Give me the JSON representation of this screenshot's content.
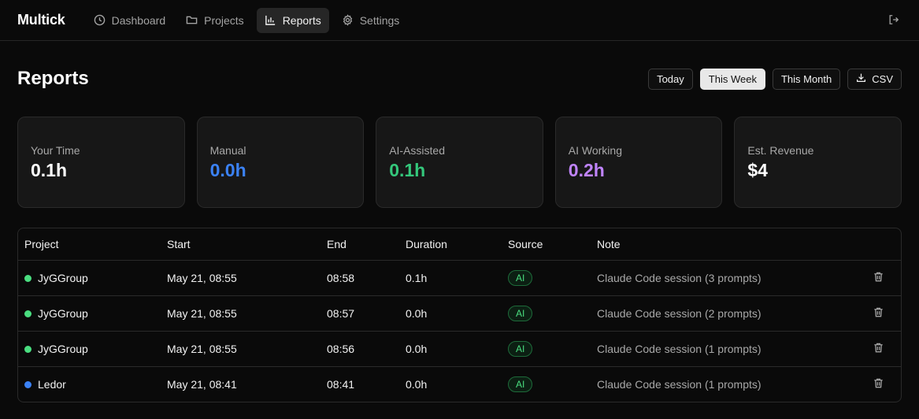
{
  "app": {
    "brand": "Multick"
  },
  "nav": {
    "items": [
      {
        "label": "Dashboard",
        "icon": "clock-icon",
        "active": false
      },
      {
        "label": "Projects",
        "icon": "folder-icon",
        "active": false
      },
      {
        "label": "Reports",
        "icon": "bar-chart-icon",
        "active": true
      },
      {
        "label": "Settings",
        "icon": "gear-icon",
        "active": false
      }
    ]
  },
  "page": {
    "title": "Reports"
  },
  "range": {
    "today": "Today",
    "this_week": "This Week",
    "this_month": "This Month",
    "csv": "CSV",
    "selected": "This Week"
  },
  "stats": [
    {
      "label": "Your Time",
      "value": "0.1h",
      "color": "#ffffff"
    },
    {
      "label": "Manual",
      "value": "0.0h",
      "color": "#3b82f6"
    },
    {
      "label": "AI-Assisted",
      "value": "0.1h",
      "color": "#34c77b"
    },
    {
      "label": "AI Working",
      "value": "0.2h",
      "color": "#c084fc"
    },
    {
      "label": "Est. Revenue",
      "value": "$4",
      "color": "#ffffff"
    }
  ],
  "table": {
    "columns": {
      "project": "Project",
      "start": "Start",
      "end": "End",
      "duration": "Duration",
      "source": "Source",
      "note": "Note"
    },
    "rows": [
      {
        "project": "JyGGroup",
        "color": "#4ade80",
        "start": "May 21, 08:55",
        "end": "08:58",
        "duration": "0.1h",
        "source": "AI",
        "note": "Claude Code session (3 prompts)"
      },
      {
        "project": "JyGGroup",
        "color": "#4ade80",
        "start": "May 21, 08:55",
        "end": "08:57",
        "duration": "0.0h",
        "source": "AI",
        "note": "Claude Code session (2 prompts)"
      },
      {
        "project": "JyGGroup",
        "color": "#4ade80",
        "start": "May 21, 08:55",
        "end": "08:56",
        "duration": "0.0h",
        "source": "AI",
        "note": "Claude Code session (1 prompts)"
      },
      {
        "project": "Ledor",
        "color": "#3b82f6",
        "start": "May 21, 08:41",
        "end": "08:41",
        "duration": "0.0h",
        "source": "AI",
        "note": "Claude Code session (1 prompts)"
      }
    ]
  }
}
